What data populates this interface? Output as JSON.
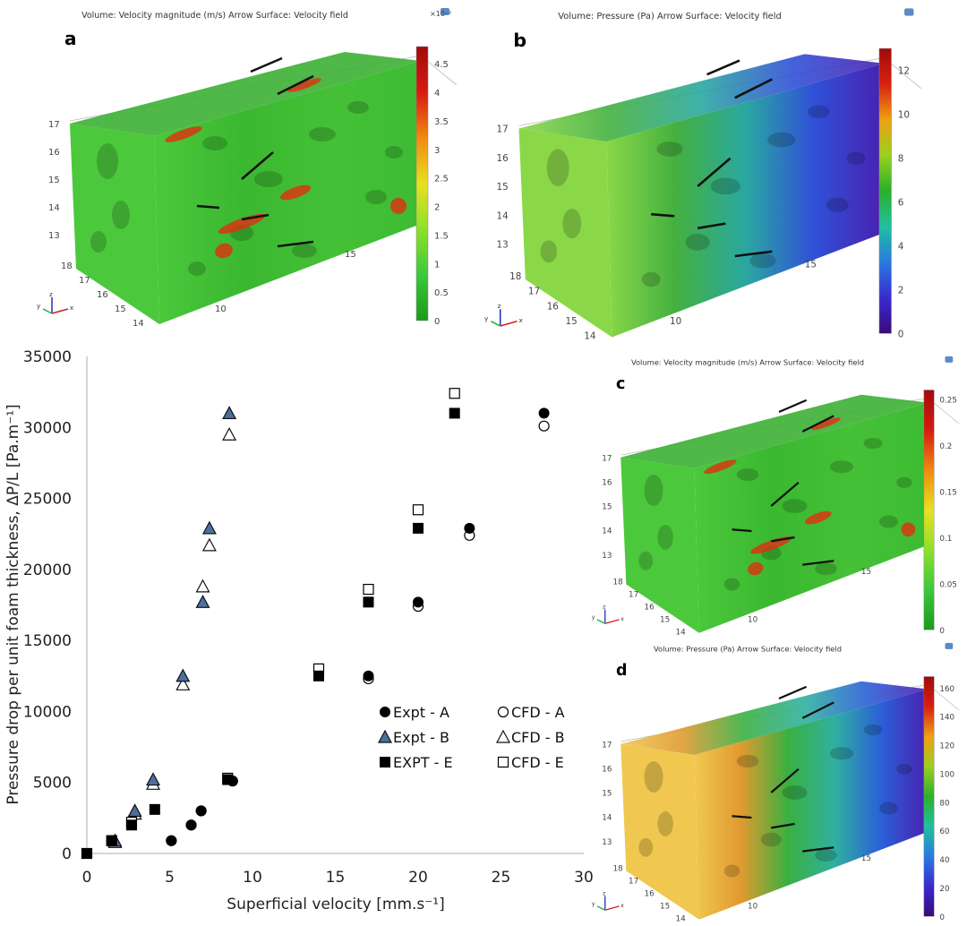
{
  "panels": [
    {
      "id": "a",
      "letter": "a",
      "title": "Volume: Velocity magnitude (m/s)  Arrow Surface: Velocity field",
      "multiplier": "×10⁻²",
      "colormap": "velocity",
      "range": [
        0,
        4.8
      ],
      "colorbar_ticks": [
        "0",
        "0.5",
        "1",
        "1.5",
        "2",
        "2.5",
        "3",
        "3.5",
        "4",
        "4.5"
      ],
      "colorbar_values": [
        0,
        0.5,
        1,
        1.5,
        2,
        2.5,
        3,
        3.5,
        4,
        4.5
      ],
      "axis_ticks_z": [
        "17",
        "16",
        "15",
        "14",
        "13"
      ],
      "axis_ticks_y": [
        "18",
        "17",
        "16",
        "15",
        "14"
      ],
      "axis_ticks_x": [
        "10",
        "15"
      ]
    },
    {
      "id": "b",
      "letter": "b",
      "title": "Volume: Pressure (Pa)  Arrow Surface: Velocity field",
      "multiplier": "",
      "colormap": "pressure-b",
      "range": [
        0,
        13
      ],
      "colorbar_ticks": [
        "0",
        "2",
        "4",
        "6",
        "8",
        "10",
        "12"
      ],
      "colorbar_values": [
        0,
        2,
        4,
        6,
        8,
        10,
        12
      ],
      "axis_ticks_z": [
        "17",
        "16",
        "15",
        "14",
        "13"
      ],
      "axis_ticks_y": [
        "18",
        "17",
        "16",
        "15",
        "14"
      ],
      "axis_ticks_x": [
        "10",
        "15"
      ]
    },
    {
      "id": "c",
      "letter": "c",
      "title": "Volume: Velocity magnitude (m/s)  Arrow Surface: Velocity field",
      "multiplier": "",
      "colormap": "velocity",
      "range": [
        0,
        0.26
      ],
      "colorbar_ticks": [
        "0",
        "0.05",
        "0.1",
        "0.15",
        "0.2",
        "0.25"
      ],
      "colorbar_values": [
        0,
        0.05,
        0.1,
        0.15,
        0.2,
        0.25
      ],
      "axis_ticks_z": [
        "17",
        "16",
        "15",
        "14",
        "13"
      ],
      "axis_ticks_y": [
        "18",
        "17",
        "16",
        "15",
        "14"
      ],
      "axis_ticks_x": [
        "10",
        "15"
      ]
    },
    {
      "id": "d",
      "letter": "d",
      "title": "Volume: Pressure (Pa)  Arrow Surface: Velocity field",
      "multiplier": "",
      "colormap": "pressure-d",
      "range": [
        0,
        168
      ],
      "colorbar_ticks": [
        "0",
        "20",
        "40",
        "60",
        "80",
        "100",
        "120",
        "140",
        "160"
      ],
      "colorbar_values": [
        0,
        20,
        40,
        60,
        80,
        100,
        120,
        140,
        160
      ],
      "axis_ticks_z": [
        "17",
        "16",
        "15",
        "14",
        "13"
      ],
      "axis_ticks_y": [
        "18",
        "17",
        "16",
        "15",
        "14"
      ],
      "axis_ticks_x": [
        "10",
        "15"
      ]
    }
  ],
  "triad_labels": {
    "x": "x",
    "y": "y",
    "z": "z"
  },
  "chart_data": {
    "type": "scatter",
    "xlabel": "Superficial velocity [mm.s⁻¹]",
    "ylabel": "Pressure drop per unit foam thickness, ΔP/L [Pa.m⁻¹]",
    "xlim": [
      0,
      30
    ],
    "ylim": [
      0,
      35000
    ],
    "xticks": [
      0,
      5,
      10,
      15,
      20,
      25,
      30
    ],
    "yticks": [
      0,
      5000,
      10000,
      15000,
      20000,
      25000,
      30000,
      35000
    ],
    "grid": false,
    "legend_placement": "lower-right",
    "colors": {
      "expt_b_fill": "#4d6f9e",
      "marker_dark": "#000000"
    },
    "series": [
      {
        "name": "Expt - A",
        "marker": "circle-filled",
        "points": [
          [
            5.1,
            900
          ],
          [
            6.3,
            2000
          ],
          [
            6.9,
            3000
          ],
          [
            8.8,
            5100
          ],
          [
            17.0,
            12500
          ],
          [
            20.0,
            17700
          ],
          [
            23.1,
            22900
          ],
          [
            27.6,
            31000
          ]
        ]
      },
      {
        "name": "CFD - A",
        "marker": "circle-open",
        "points": [
          [
            5.1,
            900
          ],
          [
            6.3,
            2000
          ],
          [
            6.9,
            3000
          ],
          [
            8.8,
            5100
          ],
          [
            17.0,
            12300
          ],
          [
            20.0,
            17400
          ],
          [
            23.1,
            22400
          ],
          [
            27.6,
            30100
          ]
        ]
      },
      {
        "name": "Expt - B",
        "marker": "triangle-blue",
        "points": [
          [
            1.7,
            900
          ],
          [
            2.9,
            3000
          ],
          [
            4.0,
            5200
          ],
          [
            5.8,
            12500
          ],
          [
            7.0,
            17700
          ],
          [
            7.4,
            22900
          ],
          [
            8.6,
            31000
          ]
        ]
      },
      {
        "name": "CFD - B",
        "marker": "triangle-open",
        "points": [
          [
            1.7,
            800
          ],
          [
            2.9,
            2800
          ],
          [
            4.0,
            4900
          ],
          [
            5.8,
            11900
          ],
          [
            7.0,
            18800
          ],
          [
            7.4,
            21700
          ],
          [
            8.6,
            29500
          ]
        ]
      },
      {
        "name": "EXPT - E",
        "marker": "square-filled",
        "points": [
          [
            0,
            0
          ],
          [
            1.5,
            900
          ],
          [
            2.7,
            2000
          ],
          [
            4.1,
            3100
          ],
          [
            8.5,
            5200
          ],
          [
            14.0,
            12500
          ],
          [
            17.0,
            17700
          ],
          [
            20.0,
            22900
          ],
          [
            22.2,
            31000
          ]
        ]
      },
      {
        "name": "CFD - E",
        "marker": "square-open",
        "points": [
          [
            0,
            0
          ],
          [
            1.5,
            900
          ],
          [
            2.7,
            2200
          ],
          [
            8.5,
            5300
          ],
          [
            14.0,
            13000
          ],
          [
            17.0,
            18600
          ],
          [
            20.0,
            24200
          ],
          [
            22.2,
            32400
          ]
        ]
      }
    ]
  }
}
